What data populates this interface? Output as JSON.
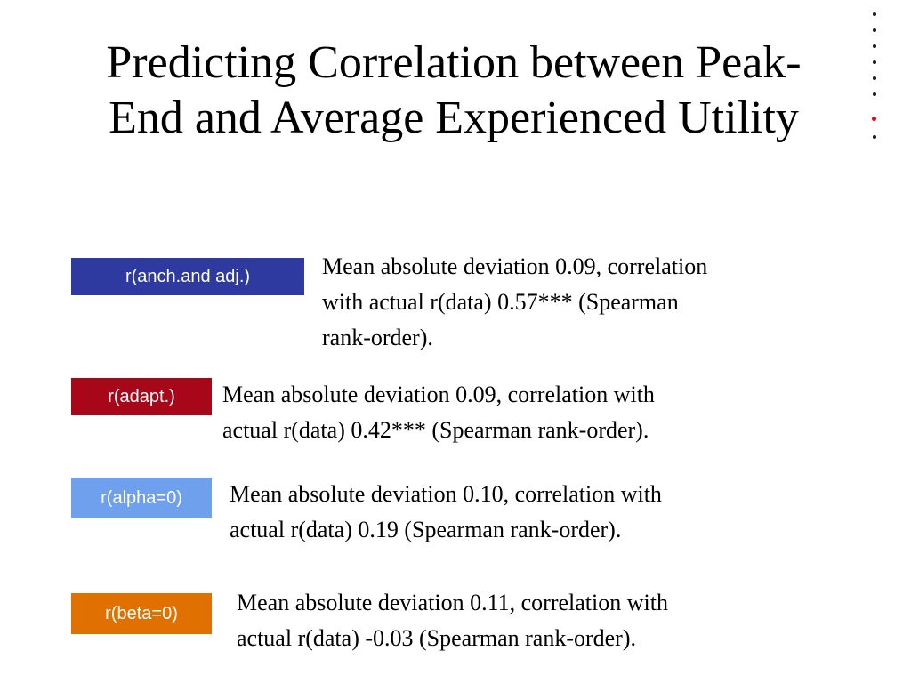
{
  "slide": {
    "title_line1": "Predicting Correlation between Peak-",
    "title_line2": "End and Average Experienced Utility"
  },
  "nav_dots": {
    "count": 8,
    "active_index": 6,
    "dot_color": "#1a1a1a",
    "active_color": "#e8001c"
  },
  "items": [
    {
      "label": "r(anch.and adj.)",
      "color": "#2f3aa0",
      "desc_line1": "Mean absolute deviation 0.09, correlation",
      "desc_line2": "with actual r(data) 0.57*** (Spearman",
      "desc_line3": "rank-order)."
    },
    {
      "label": "r(adapt.)",
      "color": "#a8071a",
      "desc_line1": "Mean absolute deviation 0.09, correlation with",
      "desc_line2": "actual r(data) 0.42*** (Spearman rank-order)."
    },
    {
      "label": "r(alpha=0)",
      "color": "#6fa0ee",
      "desc_line1": "Mean absolute deviation 0.10, correlation with",
      "desc_line2": "actual r(data) 0.19 (Spearman rank-order)."
    },
    {
      "label": "r(beta=0)",
      "color": "#e07000",
      "desc_line1": "Mean absolute deviation 0.11, correlation with",
      "desc_line2": "actual r(data) -0.03 (Spearman rank-order)."
    }
  ]
}
